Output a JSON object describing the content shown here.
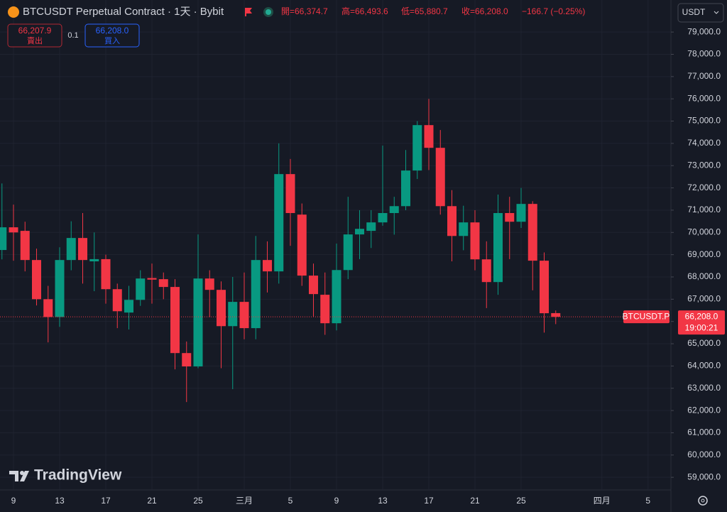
{
  "chart_data": {
    "type": "candlestick",
    "title": "BTCUSDT Perpetual Contract · 1天 · Bybit",
    "ohlc_legend": [
      "開=66,374.7",
      "高=66,493.6",
      "低=65,880.7",
      "收=66,208.0"
    ],
    "change": "−166.7 (−0.25%)",
    "trade": {
      "sell_price": "66,207.9",
      "sell_label": "賣出",
      "quantity": "0.1",
      "buy_price": "66,208.0",
      "buy_label": "買入"
    },
    "currency": "USDT",
    "symbol_label": "BTCUSDT.P",
    "last_price_label": "66,208.0",
    "countdown": "19:00:21",
    "watermark": "TradingView",
    "categories": [
      null,
      "9",
      null,
      null,
      null,
      "13",
      null,
      null,
      null,
      "17",
      null,
      null,
      null,
      "21",
      null,
      null,
      null,
      "25",
      null,
      null,
      null,
      "三月",
      null,
      null,
      null,
      "5",
      null,
      null,
      null,
      "9",
      null,
      null,
      null,
      "13",
      null,
      null,
      null,
      "17",
      null,
      null,
      null,
      "21",
      null,
      null,
      null,
      "25",
      null,
      null,
      null,
      null,
      null,
      null,
      "四月",
      null,
      null,
      null,
      "5"
    ],
    "open": [
      69210,
      70230,
      70070,
      68760,
      67000,
      66200,
      68760,
      69750,
      68700,
      68800,
      67450,
      66400,
      66970,
      67950,
      67900,
      67550,
      64580,
      63980,
      67930,
      67420,
      65790,
      66880,
      65700,
      68760,
      68250,
      72620,
      70800,
      68060,
      67200,
      65920,
      68310,
      69910,
      70070,
      70450,
      70870,
      71180,
      72780,
      74820,
      73800,
      71180,
      69840,
      70450,
      68790,
      67770,
      70870,
      70480,
      71280,
      68730,
      66374.7,
      null,
      null,
      null,
      null,
      null,
      null,
      null,
      null
    ],
    "high": [
      72200,
      71250,
      70480,
      69270,
      67600,
      69330,
      70500,
      70870,
      70000,
      69000,
      67700,
      67600,
      68300,
      68600,
      68200,
      67900,
      65100,
      69910,
      68300,
      67800,
      68000,
      68200,
      69840,
      69600,
      74000,
      73300,
      71300,
      68600,
      68200,
      69500,
      71600,
      71000,
      71000,
      73900,
      71600,
      73700,
      75000,
      76000,
      74600,
      71900,
      71200,
      71000,
      69600,
      71700,
      71600,
      72000,
      71400,
      69100,
      66493.6,
      null,
      null,
      null,
      null,
      null,
      null,
      null,
      null
    ],
    "low": [
      68790,
      68730,
      68250,
      66720,
      65060,
      65760,
      68300,
      67700,
      67360,
      66800,
      65700,
      65640,
      66700,
      66800,
      67000,
      63850,
      62380,
      63900,
      66200,
      63900,
      62960,
      65200,
      65200,
      67300,
      67700,
      69400,
      67600,
      66200,
      65400,
      65600,
      67900,
      68800,
      69300,
      70300,
      69900,
      71000,
      72400,
      72800,
      70800,
      68700,
      69200,
      68300,
      66600,
      67200,
      68800,
      70200,
      67400,
      65500,
      65880.7,
      null,
      null,
      null,
      null,
      null,
      null,
      null,
      null
    ],
    "close": [
      70230,
      70000,
      68760,
      67000,
      66200,
      68760,
      69750,
      68760,
      68800,
      67450,
      66460,
      66970,
      67930,
      67880,
      67550,
      64580,
      63980,
      67930,
      67420,
      65790,
      66880,
      65700,
      68760,
      68250,
      72620,
      70870,
      68060,
      67230,
      65920,
      68310,
      69910,
      70160,
      70450,
      70870,
      71180,
      72780,
      74820,
      73800,
      71180,
      69840,
      70450,
      68790,
      67770,
      70870,
      70480,
      71280,
      68730,
      66370,
      66208.0,
      null,
      null,
      null,
      null,
      null,
      null,
      null,
      null
    ],
    "up_color": "#089981",
    "down_color": "#f23645",
    "ylim": [
      58430,
      80440
    ],
    "yticks": [
      {
        "value": 59000,
        "label": "59,000.0"
      },
      {
        "value": 60000,
        "label": "60,000.0"
      },
      {
        "value": 61000,
        "label": "61,000.0"
      },
      {
        "value": 62000,
        "label": "62,000.0"
      },
      {
        "value": 63000,
        "label": "63,000.0"
      },
      {
        "value": 64000,
        "label": "64,000.0"
      },
      {
        "value": 65000,
        "label": "65,000.0"
      },
      {
        "value": 66000,
        "label": "66,000.0"
      },
      {
        "value": 67000,
        "label": "67,000.0"
      },
      {
        "value": 68000,
        "label": "68,000.0"
      },
      {
        "value": 69000,
        "label": "69,000.0"
      },
      {
        "value": 70000,
        "label": "70,000.0"
      },
      {
        "value": 71000,
        "label": "71,000.0"
      },
      {
        "value": 72000,
        "label": "72,000.0"
      },
      {
        "value": 73000,
        "label": "73,000.0"
      },
      {
        "value": 74000,
        "label": "74,000.0"
      },
      {
        "value": 75000,
        "label": "75,000.0"
      },
      {
        "value": 76000,
        "label": "76,000.0"
      },
      {
        "value": 77000,
        "label": "77,000.0"
      },
      {
        "value": 78000,
        "label": "78,000.0"
      },
      {
        "value": 79000,
        "label": "79,000.0"
      }
    ],
    "grid": true
  }
}
